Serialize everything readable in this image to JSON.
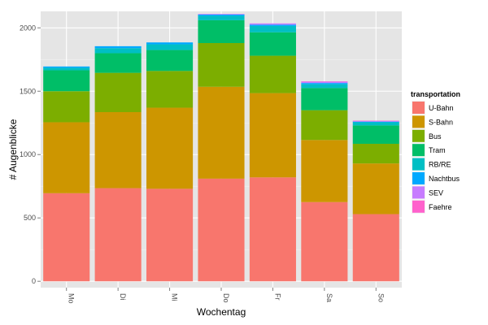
{
  "chart_data": {
    "type": "bar",
    "stacked": true,
    "xlabel": "Wochentag",
    "ylabel": "# Augenblicke",
    "ylim": [
      -50,
      2130
    ],
    "yticks": [
      0,
      500,
      1000,
      1500,
      2000
    ],
    "categories": [
      "Mo",
      "Di",
      "Mi",
      "Do",
      "Fr",
      "Sa",
      "So"
    ],
    "legend_title": "transportation",
    "legend_position": "right",
    "series": [
      {
        "name": "U-Bahn",
        "color": "#F8766D",
        "values": [
          695,
          735,
          730,
          810,
          820,
          625,
          530
        ]
      },
      {
        "name": "S-Bahn",
        "color": "#CD9600",
        "values": [
          560,
          600,
          640,
          725,
          665,
          490,
          400
        ]
      },
      {
        "name": "Bus",
        "color": "#7CAE00",
        "values": [
          245,
          310,
          290,
          345,
          295,
          235,
          155
        ]
      },
      {
        "name": "Tram",
        "color": "#00BE67",
        "values": [
          165,
          155,
          165,
          180,
          185,
          175,
          145
        ]
      },
      {
        "name": "RB/RE",
        "color": "#00BFC4",
        "values": [
          20,
          40,
          45,
          35,
          50,
          30,
          25
        ]
      },
      {
        "name": "Nachtbus",
        "color": "#00A9FF",
        "values": [
          10,
          15,
          15,
          10,
          10,
          10,
          5
        ]
      },
      {
        "name": "SEV",
        "color": "#C77CFF",
        "values": [
          0,
          0,
          0,
          5,
          10,
          10,
          5
        ]
      },
      {
        "name": "Faehre",
        "color": "#FF61CC",
        "values": [
          0,
          0,
          0,
          0,
          0,
          3,
          3
        ]
      }
    ]
  }
}
